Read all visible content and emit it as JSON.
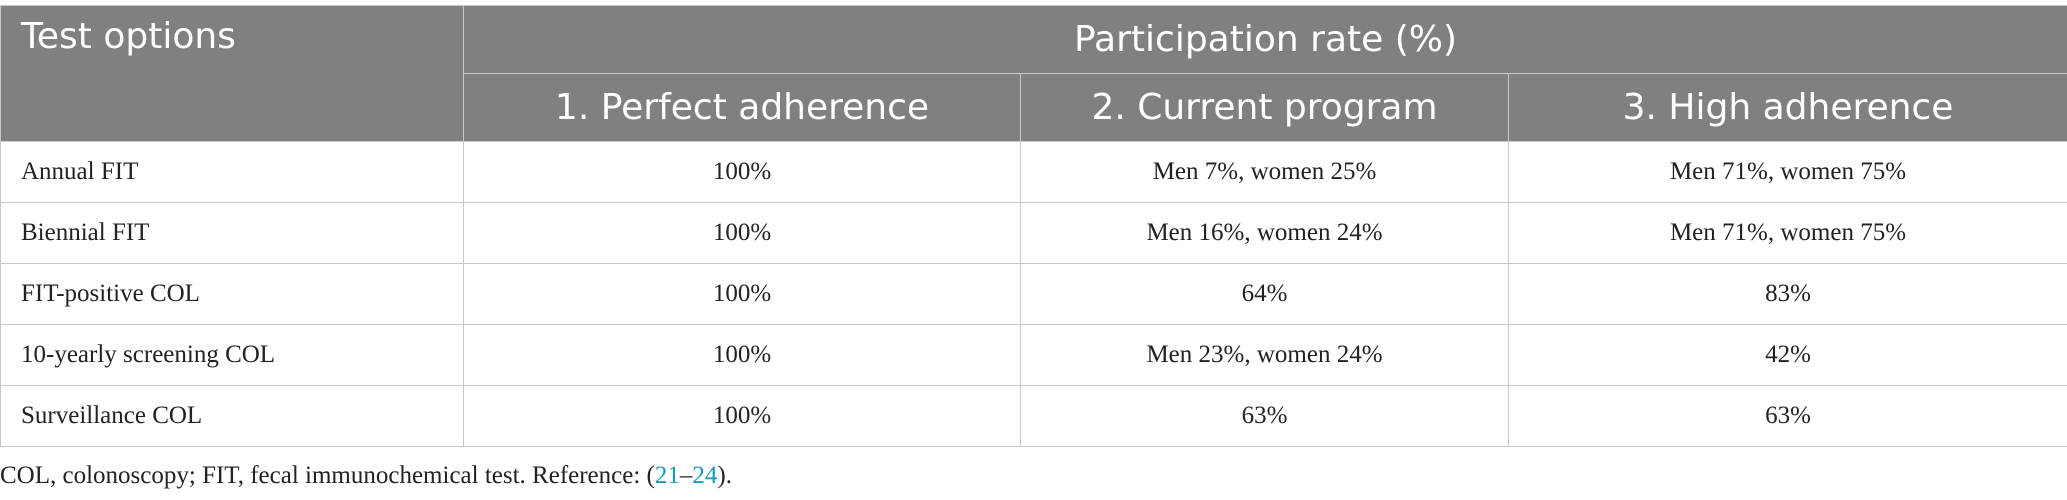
{
  "table": {
    "header": {
      "first": "Test options",
      "group": "Participation rate (%)",
      "columns": [
        "1. Perfect adherence",
        "2. Current program",
        "3. High adherence"
      ]
    },
    "rows": [
      [
        "Annual FIT",
        "100%",
        "Men 7%, women 25%",
        "Men 71%, women 75%"
      ],
      [
        "Biennial FIT",
        "100%",
        "Men 16%, women 24%",
        "Men 71%, women 75%"
      ],
      [
        "FIT-positive COL",
        "100%",
        "64%",
        "83%"
      ],
      [
        "10-yearly screening COL",
        "100%",
        "Men 23%, women 24%",
        "42%"
      ],
      [
        "Surveillance COL",
        "100%",
        "63%",
        "63%"
      ]
    ]
  },
  "footnote": {
    "text": "COL, colonoscopy; FIT, fecal immunochemical test. Reference: (",
    "ref_start": "21",
    "dash": "–",
    "ref_end": "24",
    "end": ")."
  }
}
